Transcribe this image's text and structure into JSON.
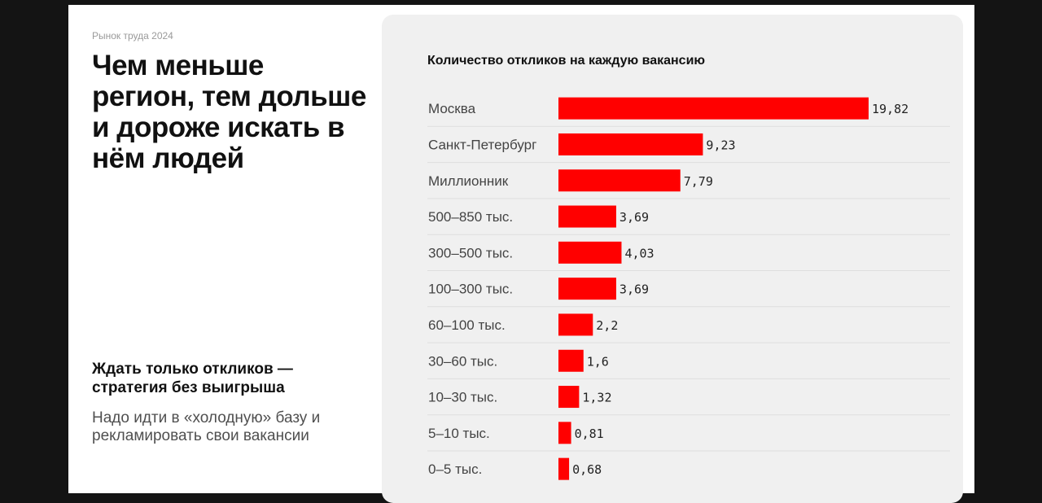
{
  "eyebrow": "Рынок труда 2024",
  "headline": "Чем меньше регион, тем дольше и дороже искать в нём людей",
  "subhead": "Ждать только откликов — стратегия без выигрыша",
  "body_text": "Надо идти в «холодную» базу и рекламировать свои вакансии",
  "colors": {
    "bar": "#ff0000",
    "panel": "#f0f0f0",
    "separator": "#dedede"
  },
  "chart_data": {
    "type": "bar",
    "orientation": "horizontal",
    "title": "Количество откликов на каждую вакансию",
    "xlabel": "",
    "ylabel": "",
    "grid": false,
    "categories": [
      "Москва",
      "Санкт-Петербург",
      "Миллионник",
      "500–850 тыс.",
      "300–500 тыс.",
      "100–300 тыс.",
      "60–100 тыс.",
      "30–60 тыс.",
      "10–30 тыс.",
      "5–10 тыс.",
      "0–5 тыс."
    ],
    "values": [
      19.82,
      9.23,
      7.79,
      3.69,
      4.03,
      3.69,
      2.2,
      1.6,
      1.32,
      0.81,
      0.68
    ],
    "value_labels": [
      "19,82",
      "9,23",
      "7,79",
      "3,69",
      "4,03",
      "3,69",
      "2,2",
      "1,6",
      "1,32",
      "0,81",
      "0,68"
    ]
  }
}
